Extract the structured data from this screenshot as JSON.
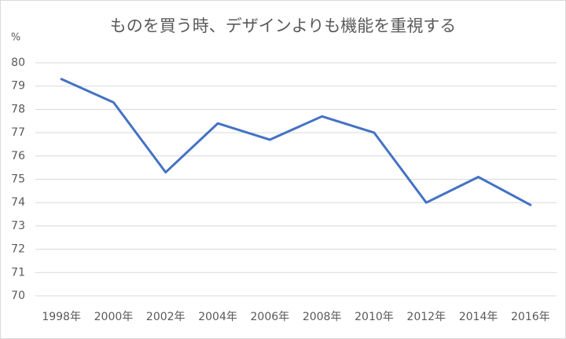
{
  "chart_data": {
    "type": "line",
    "title": "ものを買う時、デザインよりも機能を重視する",
    "y_unit": "%",
    "categories": [
      "1998年",
      "2000年",
      "2002年",
      "2004年",
      "2006年",
      "2008年",
      "2010年",
      "2012年",
      "2014年",
      "2016年"
    ],
    "series": [
      {
        "name": "ものを買う時、デザインよりも機能を重視する",
        "color": "#4472c4",
        "values": [
          79.3,
          78.3,
          75.3,
          77.4,
          76.7,
          77.7,
          77.0,
          74.0,
          75.1,
          73.9
        ]
      }
    ],
    "ylim": [
      70,
      80
    ],
    "yticks": [
      70,
      71,
      72,
      73,
      74,
      75,
      76,
      77,
      78,
      79,
      80
    ],
    "grid": true
  }
}
